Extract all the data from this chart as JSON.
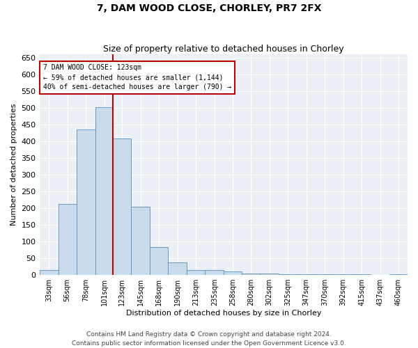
{
  "title": "7, DAM WOOD CLOSE, CHORLEY, PR7 2FX",
  "subtitle": "Size of property relative to detached houses in Chorley",
  "xlabel": "Distribution of detached houses by size in Chorley",
  "ylabel": "Number of detached properties",
  "footer1": "Contains HM Land Registry data © Crown copyright and database right 2024.",
  "footer2": "Contains public sector information licensed under the Open Government Licence v3.0.",
  "annotation_line1": "7 DAM WOOD CLOSE: 123sqm",
  "annotation_line2": "← 59% of detached houses are smaller (1,144)",
  "annotation_line3": "40% of semi-detached houses are larger (790) →",
  "property_size": 123,
  "bar_edges": [
    33,
    56,
    78,
    101,
    123,
    145,
    168,
    190,
    213,
    235,
    258,
    280,
    302,
    325,
    347,
    370,
    392,
    415,
    437,
    460,
    482
  ],
  "bar_heights": [
    14,
    213,
    436,
    502,
    408,
    205,
    83,
    37,
    14,
    14,
    10,
    5,
    4,
    3,
    3,
    3,
    3,
    3,
    0,
    3
  ],
  "bar_color": "#c9daea",
  "bar_edge_color": "#5b8db8",
  "vline_color": "#bb0000",
  "box_edge_color": "#bb0000",
  "background_color": "#eaf0f6",
  "grid_color": "#ffffff",
  "ylim": [
    0,
    660
  ],
  "yticks": [
    0,
    50,
    100,
    150,
    200,
    250,
    300,
    350,
    400,
    450,
    500,
    550,
    600,
    650
  ],
  "title_fontsize": 10,
  "subtitle_fontsize": 9,
  "xlabel_fontsize": 8,
  "ylabel_fontsize": 8,
  "ytick_fontsize": 8,
  "xtick_fontsize": 7,
  "annotation_fontsize": 7,
  "footer_fontsize": 6.5
}
